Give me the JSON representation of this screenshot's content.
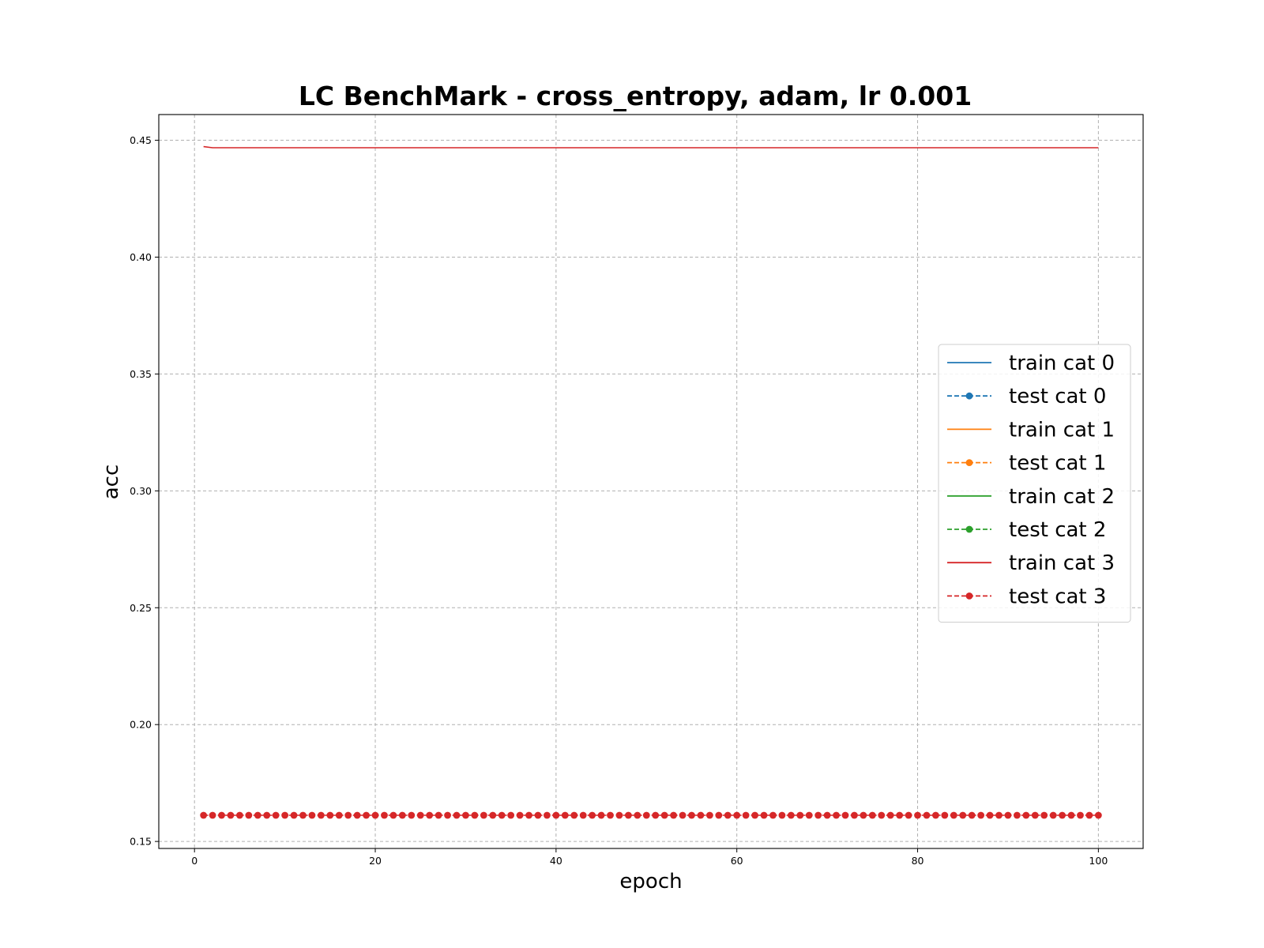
{
  "chart_data": {
    "type": "line",
    "title": "LC BenchMark - cross_entropy, adam, lr 0.001",
    "xlabel": "epoch",
    "ylabel": "acc",
    "xlim": [
      -3.95,
      104.95
    ],
    "ylim": [
      0.147,
      0.461
    ],
    "xticks": [
      0,
      20,
      40,
      60,
      80,
      100
    ],
    "xtick_labels": [
      "0",
      "20",
      "40",
      "60",
      "80",
      "100"
    ],
    "yticks": [
      0.15,
      0.2,
      0.25,
      0.3,
      0.35,
      0.4,
      0.45
    ],
    "ytick_labels": [
      "0.15",
      "0.20",
      "0.25",
      "0.30",
      "0.35",
      "0.40",
      "0.45"
    ],
    "grid": true,
    "legend_position": "center-right",
    "x_range": [
      1,
      100
    ],
    "series": [
      {
        "name": "train cat 0",
        "color": "#1f77b4",
        "style": "solid",
        "marker": "none",
        "start_value": 0.4473,
        "value": 0.4468,
        "visible": false
      },
      {
        "name": "test cat 0",
        "color": "#1f77b4",
        "style": "dashed",
        "marker": "circle",
        "value": 0.1612,
        "visible": false
      },
      {
        "name": "train cat 1",
        "color": "#ff7f0e",
        "style": "solid",
        "marker": "none",
        "start_value": 0.4473,
        "value": 0.4468,
        "visible": false
      },
      {
        "name": "test cat 1",
        "color": "#ff7f0e",
        "style": "dashed",
        "marker": "circle",
        "value": 0.1612,
        "visible": false
      },
      {
        "name": "train cat 2",
        "color": "#2ca02c",
        "style": "solid",
        "marker": "none",
        "start_value": 0.4473,
        "value": 0.4468,
        "visible": false
      },
      {
        "name": "test cat 2",
        "color": "#2ca02c",
        "style": "dashed",
        "marker": "circle",
        "value": 0.1612,
        "visible": false
      },
      {
        "name": "train cat 3",
        "color": "#d62728",
        "style": "solid",
        "marker": "none",
        "start_value": 0.4473,
        "value": 0.4468,
        "visible": true
      },
      {
        "name": "test cat 3",
        "color": "#d62728",
        "style": "dashed",
        "marker": "circle",
        "value": 0.1612,
        "visible": true
      }
    ]
  }
}
